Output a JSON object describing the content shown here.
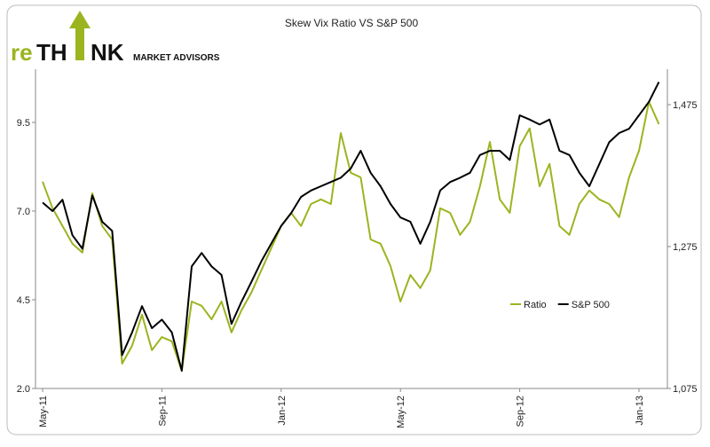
{
  "logo": {
    "parts": [
      "re",
      "TH",
      "NK"
    ],
    "tagline": "MARKET ADVISORS"
  },
  "chart_data": {
    "type": "line",
    "title": "Skew Vix Ratio VS S&P 500",
    "categories": [
      "May-11",
      null,
      null,
      null,
      null,
      null,
      null,
      null,
      null,
      null,
      null,
      null,
      "Sep-11",
      null,
      null,
      null,
      null,
      null,
      null,
      null,
      null,
      null,
      null,
      null,
      "Jan-12",
      null,
      null,
      null,
      null,
      null,
      null,
      null,
      null,
      null,
      null,
      null,
      "May-12",
      null,
      null,
      null,
      null,
      null,
      null,
      null,
      null,
      null,
      null,
      null,
      "Sep-12",
      null,
      null,
      null,
      null,
      null,
      null,
      null,
      null,
      null,
      null,
      null,
      "Jan-13",
      null,
      null
    ],
    "series": [
      {
        "name": "Ratio",
        "color": "#9ab520",
        "axis": "y",
        "values": [
          7.83,
          7.08,
          6.58,
          6.08,
          5.83,
          7.5,
          6.58,
          6.2,
          2.7,
          3.2,
          4.08,
          3.08,
          3.45,
          3.33,
          2.5,
          4.45,
          4.33,
          3.95,
          4.45,
          3.58,
          4.2,
          4.7,
          5.33,
          5.95,
          6.58,
          6.95,
          6.58,
          7.2,
          7.33,
          7.2,
          9.2,
          8.08,
          7.95,
          6.2,
          6.08,
          5.45,
          4.45,
          5.2,
          4.83,
          5.33,
          7.08,
          6.95,
          6.33,
          6.7,
          7.7,
          8.95,
          7.33,
          6.95,
          8.83,
          9.33,
          7.7,
          8.33,
          6.58,
          6.33,
          7.2,
          7.58,
          7.33,
          7.2,
          6.83,
          7.95,
          8.7,
          10.08,
          9.45
        ]
      },
      {
        "name": "S&P 500",
        "color": "#000000",
        "axis": "y2",
        "values": [
          1337,
          1325,
          1341,
          1291,
          1272,
          1347,
          1310,
          1297,
          1122,
          1154,
          1191,
          1160,
          1172,
          1154,
          1100,
          1247,
          1266,
          1247,
          1235,
          1166,
          1197,
          1225,
          1254,
          1279,
          1304,
          1322,
          1345,
          1354,
          1360,
          1366,
          1372,
          1385,
          1410,
          1379,
          1360,
          1335,
          1316,
          1310,
          1279,
          1310,
          1354,
          1366,
          1372,
          1379,
          1404,
          1410,
          1410,
          1397,
          1460,
          1454,
          1447,
          1454,
          1410,
          1404,
          1379,
          1360,
          1391,
          1422,
          1435,
          1441,
          1460,
          1479,
          1507
        ]
      }
    ],
    "ylim": [
      2,
      11
    ],
    "yticks": [
      {
        "value": 2,
        "label": "2.0"
      },
      4.5,
      {
        "value": 7,
        "label": "7.0"
      },
      9.5
    ],
    "y2lim": [
      1075,
      1525
    ],
    "y2ticks": [
      {
        "value": 1075,
        "label": "1,075"
      },
      {
        "value": 1275,
        "label": "1,275"
      },
      {
        "value": 1475,
        "label": "1,475"
      }
    ],
    "legend": "center-right",
    "grid": false
  }
}
